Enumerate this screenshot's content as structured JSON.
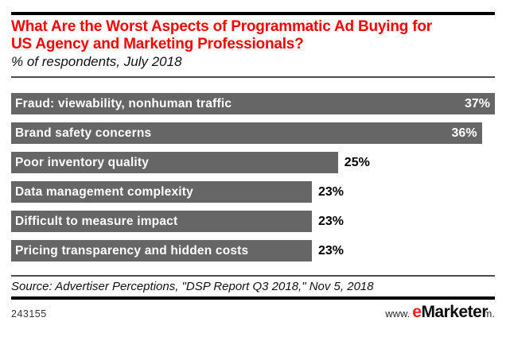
{
  "header": {
    "title": "What Are the Worst Aspects of Programmatic Ad Buying for US Agency and Marketing Professionals?",
    "subtitle": "% of respondents, July 2018"
  },
  "chart_data": {
    "type": "bar",
    "orientation": "horizontal",
    "title": "What Are the Worst Aspects of Programmatic Ad Buying for US Agency and Marketing Professionals?",
    "subtitle": "% of respondents, July 2018",
    "xlabel": "",
    "ylabel": "",
    "xlim": [
      0,
      37
    ],
    "grid": false,
    "legend": false,
    "bar_color": "#666666",
    "categories": [
      "Fraud: viewability, nonhuman traffic",
      "Brand safety concerns",
      "Poor inventory quality",
      "Data management complexity",
      "Difficult to measure impact",
      "Pricing transparency and hidden costs"
    ],
    "values": [
      37,
      36,
      25,
      23,
      23,
      23
    ],
    "value_labels": [
      "37%",
      "36%",
      "25%",
      "23%",
      "23%",
      "23%"
    ],
    "value_inside": [
      true,
      true,
      false,
      false,
      false,
      false
    ]
  },
  "footer": {
    "source": "Source: Advertiser Perceptions, \"DSP Report Q3 2018,\" Nov 5, 2018",
    "chart_id": "243155",
    "logo": {
      "www": "www.",
      "e": "e",
      "marketer": "Marketer",
      "com": ".com"
    }
  },
  "colors": {
    "title_red": "#ff0000",
    "bar_gray": "#666666",
    "logo_red": "#e8231d",
    "rule_black": "#000000",
    "divider_gray": "#4d4d4d"
  }
}
